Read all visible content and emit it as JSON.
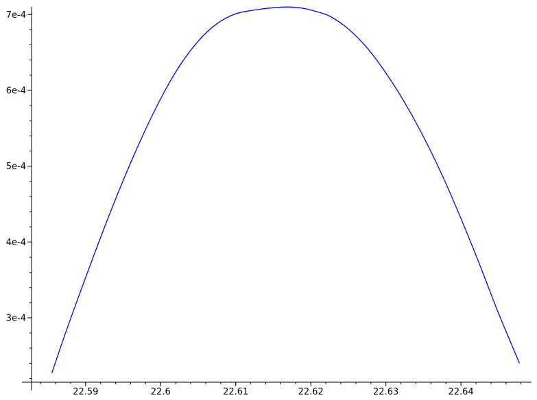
{
  "chart_data": {
    "type": "line",
    "title": "",
    "xlabel": "",
    "ylabel": "",
    "xlim": [
      22.5828,
      22.6494
    ],
    "ylim": [
      0.000215,
      0.000712
    ],
    "grid": false,
    "x_ticks": [
      {
        "value": 22.59,
        "label": "22.59"
      },
      {
        "value": 22.6,
        "label": "22.6"
      },
      {
        "value": 22.61,
        "label": "22.61"
      },
      {
        "value": 22.62,
        "label": "22.62"
      },
      {
        "value": 22.63,
        "label": "22.63"
      },
      {
        "value": 22.64,
        "label": "22.64"
      }
    ],
    "y_ticks": [
      {
        "value": 0.0003,
        "label": "3e-4"
      },
      {
        "value": 0.0004,
        "label": "4e-4"
      },
      {
        "value": 0.0005,
        "label": "5e-4"
      },
      {
        "value": 0.0006,
        "label": "6e-4"
      },
      {
        "value": 0.0007,
        "label": "7e-4"
      }
    ],
    "x_minor_step": 0.002,
    "y_minor_step": 2e-05,
    "series": [
      {
        "color": "#0000ff",
        "x": [
          22.5855,
          22.5875,
          22.59,
          22.5925,
          22.595,
          22.5975,
          22.6,
          22.6025,
          22.605,
          22.6075,
          22.61,
          22.6125,
          22.615,
          22.6168,
          22.6185,
          22.62,
          22.6225,
          22.625,
          22.6275,
          22.63,
          22.6325,
          22.635,
          22.6375,
          22.64,
          22.6425,
          22.645,
          22.6478
        ],
        "y": [
          0.000227,
          0.000285,
          0.000353,
          0.000419,
          0.000481,
          0.000538,
          0.000589,
          0.000632,
          0.000665,
          0.000688,
          0.000701,
          0.000706,
          0.000709,
          0.00071,
          0.000709,
          0.000706,
          0.000698,
          0.000681,
          0.000656,
          0.000623,
          0.000584,
          0.000539,
          0.000488,
          0.000431,
          0.00037,
          0.000306,
          0.00024
        ]
      }
    ]
  }
}
